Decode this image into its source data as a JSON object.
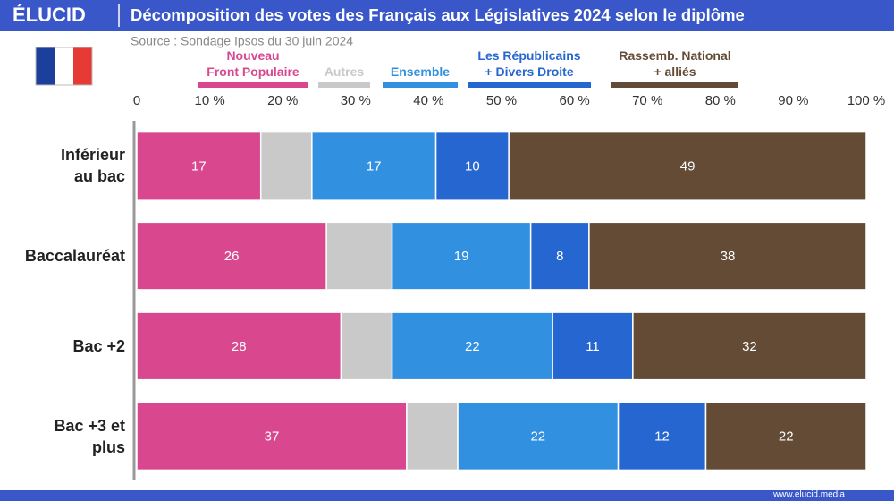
{
  "brand": {
    "logo": "ÉLUCID",
    "url": "www.elucid.media"
  },
  "chart_data": {
    "type": "stacked-bar-horizontal",
    "title": "Décomposition des votes des Français aux Législatives 2024 selon le diplôme",
    "subtitle": "Source : Sondage Ipsos du 30 juin 2024",
    "categories": [
      "Inférieur\nau bac",
      "Baccalauréat",
      "Bac +2",
      "Bac +3 et\nplus"
    ],
    "series": [
      {
        "name": "Nouveau\nFront Populaire",
        "color": "#d9488f",
        "values": [
          17,
          26,
          28,
          37
        ],
        "labels": true
      },
      {
        "name": "Autres",
        "color": "#c9c9c9",
        "values": [
          7,
          9,
          7,
          7
        ],
        "labels": false
      },
      {
        "name": "Ensemble",
        "color": "#3190e0",
        "values": [
          17,
          19,
          22,
          22
        ],
        "labels": true
      },
      {
        "name": "Les Républicains\n+ Divers Droite",
        "color": "#2566d1",
        "values": [
          10,
          8,
          11,
          12
        ],
        "labels": true
      },
      {
        "name": "Rassemb. National\n+ alliés",
        "color": "#644b35",
        "values": [
          49,
          38,
          32,
          22
        ],
        "labels": true
      }
    ],
    "xlim": [
      0,
      100
    ],
    "xticks": [
      0,
      {
        "value": 10,
        "label": "10 %"
      },
      {
        "value": 20,
        "label": "20 %"
      },
      {
        "value": 30,
        "label": "30 %"
      },
      {
        "value": 40,
        "label": "40 %"
      },
      {
        "value": 50,
        "label": "50 %"
      },
      {
        "value": 60,
        "label": "60 %"
      },
      {
        "value": 70,
        "label": "70 %"
      },
      {
        "value": 80,
        "label": "80 %"
      },
      {
        "value": 90,
        "label": "90 %"
      },
      {
        "value": 100,
        "label": "100 %"
      }
    ],
    "grid": false
  }
}
